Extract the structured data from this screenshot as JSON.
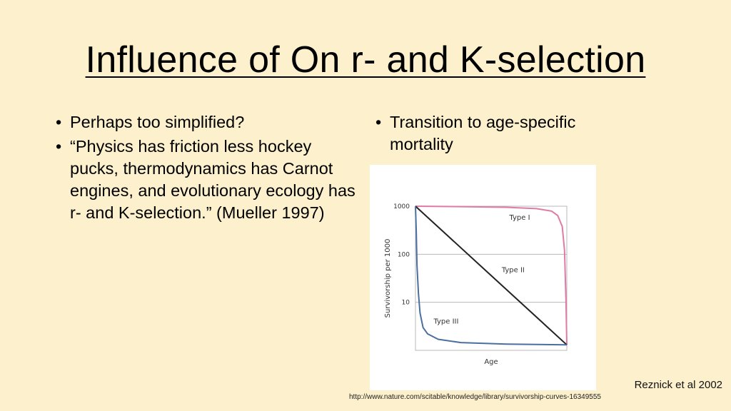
{
  "slide": {
    "title": "Influence of On r- and K-selection",
    "left_bullets": [
      "Perhaps too simplified?",
      "“Physics has friction less hockey pucks, thermodynamics has Carnot engines, and evolutionary ecology has r- and K-selection.” (Mueller 1997)"
    ],
    "right_bullets": [
      "Transition to age-specific mortality"
    ],
    "citation": "Reznick et al 2002",
    "source_url": "http://www.nature.com/scitable/knowledge/library/survivorship-curves-16349555"
  },
  "chart_data": {
    "type": "line",
    "title": "",
    "xlabel": "Age",
    "ylabel": "Survivorship per 1000",
    "y_scale": "log",
    "ylim": [
      1,
      1000
    ],
    "xlim": [
      0,
      1
    ],
    "y_ticks": [
      "1000",
      "100",
      "10"
    ],
    "y_tick_values": [
      1000,
      100,
      10
    ],
    "grid": true,
    "series": [
      {
        "name": "Type I",
        "color": "#e07ba4",
        "x": [
          0,
          0.3,
          0.6,
          0.8,
          0.9,
          0.94,
          0.97,
          0.985,
          0.995,
          1.0
        ],
        "y": [
          1000,
          980,
          950,
          890,
          790,
          640,
          380,
          120,
          10,
          1.3
        ]
      },
      {
        "name": "Type II",
        "color": "#222222",
        "x": [
          0,
          1
        ],
        "y": [
          1000,
          1.3
        ]
      },
      {
        "name": "Type III",
        "color": "#4a6fa0",
        "x": [
          0,
          0.005,
          0.01,
          0.02,
          0.03,
          0.05,
          0.08,
          0.15,
          0.3,
          0.6,
          1.0
        ],
        "y": [
          1000,
          300,
          60,
          15,
          6,
          3,
          2.2,
          1.7,
          1.45,
          1.35,
          1.3
        ]
      }
    ]
  }
}
